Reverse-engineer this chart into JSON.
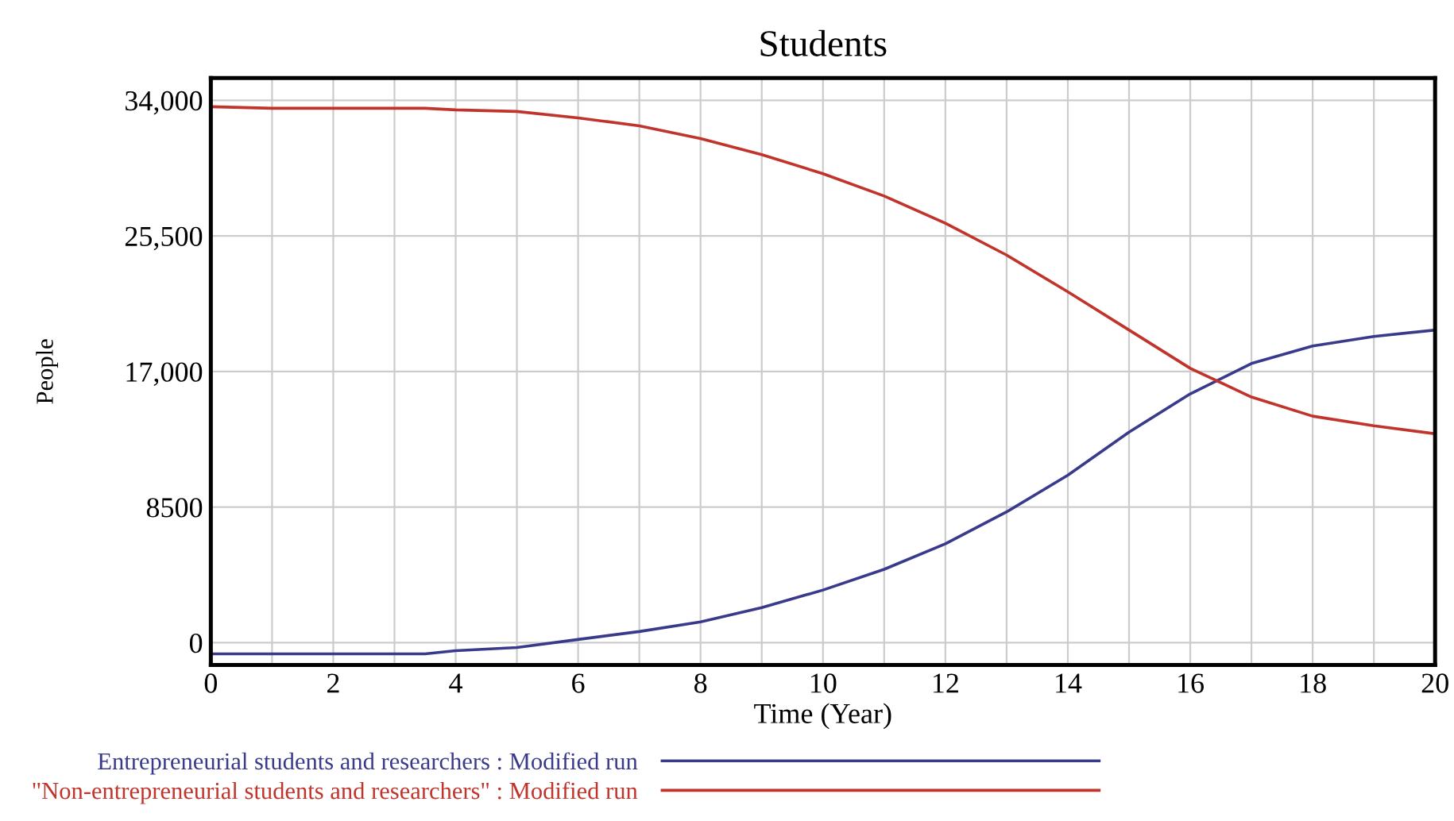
{
  "chart_data": {
    "type": "line",
    "title": "Students",
    "xlabel": "Time (Year)",
    "ylabel": "People",
    "x": [
      0,
      1,
      2,
      3,
      3.5,
      4,
      5,
      6,
      7,
      8,
      9,
      10,
      11,
      12,
      13,
      14,
      15,
      16,
      17,
      18,
      19,
      20
    ],
    "series": [
      {
        "name": "Entrepreneurial students and researchers : Modified run",
        "color": "#3a3a8c",
        "values": [
          -700,
          -700,
          -700,
          -700,
          -700,
          -500,
          -300,
          200,
          700,
          1300,
          2200,
          3300,
          4600,
          6200,
          8200,
          10500,
          13200,
          15600,
          17500,
          18600,
          19200,
          19600
        ]
      },
      {
        "name": "\"Non-entrepreneurial students and researchers\" : Modified run",
        "color": "#c0342c",
        "values": [
          33600,
          33500,
          33500,
          33500,
          33500,
          33400,
          33300,
          32900,
          32400,
          31600,
          30600,
          29400,
          28000,
          26300,
          24300,
          22000,
          19600,
          17200,
          15400,
          14200,
          13600,
          13100
        ]
      }
    ],
    "xlim": [
      0,
      20
    ],
    "ylim": [
      -1400,
      35400
    ],
    "xticks": [
      0,
      {
        "value": 1,
        "label": null
      },
      2,
      {
        "value": 3,
        "label": null
      },
      4,
      {
        "value": 5,
        "label": null
      },
      6,
      {
        "value": 7,
        "label": null
      },
      8,
      {
        "value": 9,
        "label": null
      },
      10,
      {
        "value": 11,
        "label": null
      },
      12,
      {
        "value": 13,
        "label": null
      },
      14,
      {
        "value": 15,
        "label": null
      },
      16,
      {
        "value": 17,
        "label": null
      },
      18,
      {
        "value": 19,
        "label": null
      },
      20
    ],
    "yticks": [
      0,
      8500,
      {
        "value": 17000,
        "label": "17,000"
      },
      {
        "value": 25500,
        "label": "25,500"
      },
      {
        "value": 34000,
        "label": "34,000"
      }
    ],
    "grid": true,
    "legend": "bottom",
    "marker": "none",
    "line_style": "solid"
  }
}
